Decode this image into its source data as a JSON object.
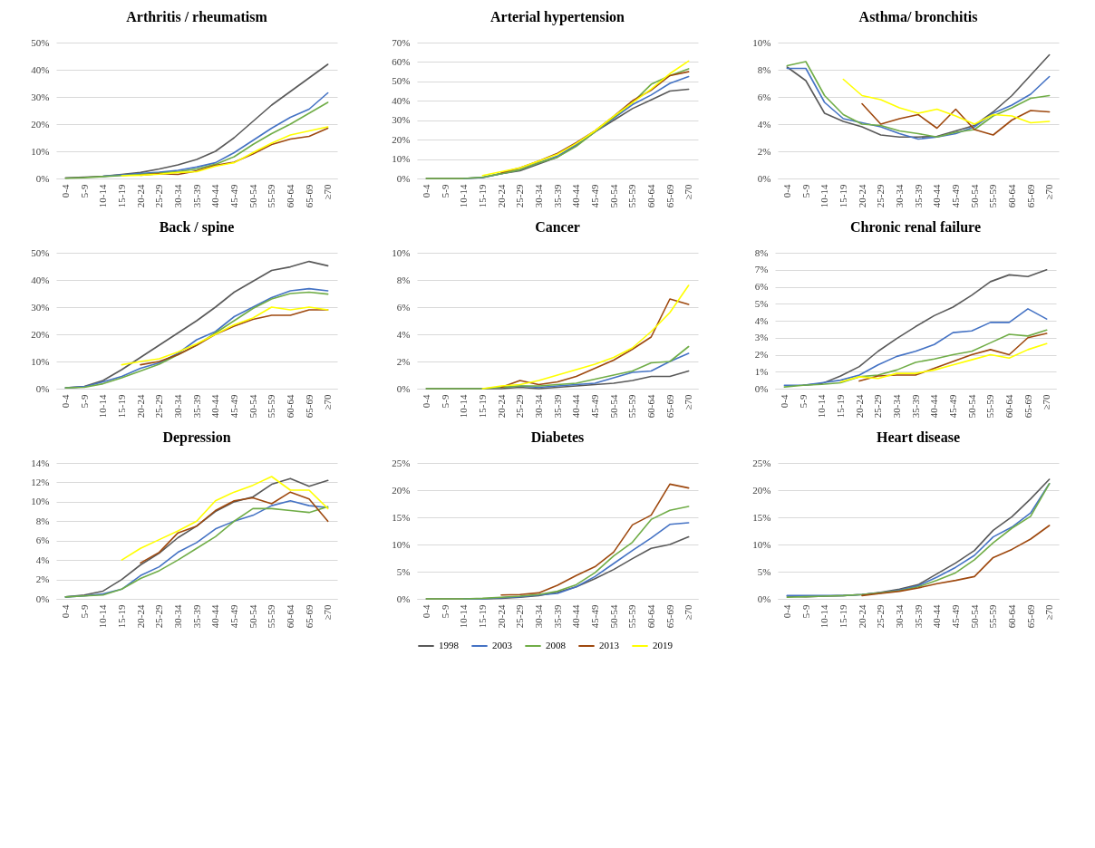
{
  "chart_data": [
    {
      "type": "line",
      "title": "Arthritis / rheumatism",
      "categories": [
        "0-4",
        "5-9",
        "10-14",
        "15-19",
        "20-24",
        "25-29",
        "30-34",
        "35-39",
        "40-44",
        "45-49",
        "50-54",
        "55-59",
        "60-64",
        "65-69",
        "≥70"
      ],
      "ylim": [
        0,
        50
      ],
      "yticks": [
        {
          "value": 0,
          "label": "0%"
        },
        {
          "value": 10,
          "label": "10%"
        },
        {
          "value": 20,
          "label": "20%"
        },
        {
          "value": 30,
          "label": "30%"
        },
        {
          "value": 40,
          "label": "40%"
        },
        {
          "value": 50,
          "label": "50%"
        }
      ],
      "grid": "y",
      "legend": false,
      "line_style": "solid",
      "series": [
        {
          "color": "#595959",
          "values": [
            0.2,
            0.5,
            0.8,
            1.5,
            2.2,
            3.5,
            5,
            7,
            10,
            15,
            21,
            27,
            32,
            37,
            42
          ]
        },
        {
          "color": "#4472c4",
          "values": [
            null,
            null,
            0.8,
            1.3,
            1.8,
            2.3,
            3,
            4.2,
            5.8,
            9.5,
            14,
            18.5,
            22.5,
            25.5,
            31.5
          ]
        },
        {
          "color": "#70ad47",
          "values": [
            0.1,
            0.3,
            0.7,
            1.1,
            1.5,
            2,
            2.5,
            3.5,
            5.2,
            8,
            12.5,
            16.5,
            20,
            24,
            28
          ]
        },
        {
          "color": "#9e480e",
          "values": [
            null,
            null,
            null,
            null,
            1.2,
            1.8,
            1.5,
            2.8,
            4.8,
            6,
            9,
            12.5,
            14.5,
            15.5,
            18.5
          ]
        },
        {
          "color": "#ffff00",
          "values": [
            null,
            null,
            null,
            1,
            1.2,
            1.6,
            2.2,
            2.5,
            4.5,
            5.8,
            9.5,
            13,
            16,
            17.5,
            19
          ]
        }
      ]
    },
    {
      "type": "line",
      "title": "Arterial hypertension",
      "categories": [
        "0-4",
        "5-9",
        "10-14",
        "15-19",
        "20-24",
        "25-29",
        "30-34",
        "35-39",
        "40-44",
        "45-49",
        "50-54",
        "55-59",
        "60-64",
        "65-69",
        "≥70"
      ],
      "ylim": [
        0,
        70
      ],
      "yticks": [
        {
          "value": 0,
          "label": "0%"
        },
        {
          "value": 10,
          "label": "10%"
        },
        {
          "value": 20,
          "label": "20%"
        },
        {
          "value": 30,
          "label": "30%"
        },
        {
          "value": 40,
          "label": "40%"
        },
        {
          "value": 50,
          "label": "50%"
        },
        {
          "value": 60,
          "label": "60%"
        },
        {
          "value": 70,
          "label": "70%"
        }
      ],
      "grid": "y",
      "legend": false,
      "line_style": "solid",
      "series": [
        {
          "color": "#595959",
          "values": [
            0,
            0,
            0,
            0.5,
            2.5,
            4,
            7.5,
            11,
            17,
            24,
            30,
            36,
            40.5,
            45,
            46
          ]
        },
        {
          "color": "#4472c4",
          "values": [
            null,
            null,
            0,
            0.5,
            2.5,
            4.5,
            8,
            11.5,
            17.5,
            24,
            31,
            38,
            43,
            49,
            52.5
          ]
        },
        {
          "color": "#70ad47",
          "values": [
            0,
            0,
            0,
            0.7,
            2.5,
            4.5,
            8,
            11,
            16.5,
            24,
            31.5,
            39,
            48.5,
            53,
            56.5
          ]
        },
        {
          "color": "#9e480e",
          "values": [
            null,
            null,
            null,
            null,
            3,
            5.5,
            9,
            13,
            18.5,
            24.5,
            32,
            40,
            45.5,
            53,
            55
          ]
        },
        {
          "color": "#ffff00",
          "values": [
            null,
            null,
            null,
            1.5,
            3.5,
            5.5,
            9,
            12.5,
            18,
            24.5,
            32,
            39,
            46,
            54,
            60.5
          ]
        }
      ]
    },
    {
      "type": "line",
      "title": "Asthma/ bronchitis",
      "categories": [
        "0-4",
        "5-9",
        "10-14",
        "15-19",
        "20-24",
        "25-29",
        "30-34",
        "35-39",
        "40-44",
        "45-49",
        "50-54",
        "55-59",
        "60-64",
        "65-69",
        "≥70"
      ],
      "ylim": [
        0,
        10
      ],
      "yticks": [
        {
          "value": 0,
          "label": "0%"
        },
        {
          "value": 2,
          "label": "2%"
        },
        {
          "value": 4,
          "label": "4%"
        },
        {
          "value": 6,
          "label": "6%"
        },
        {
          "value": 8,
          "label": "8%"
        },
        {
          "value": 10,
          "label": "10%"
        }
      ],
      "grid": "y",
      "legend": false,
      "line_style": "solid",
      "series": [
        {
          "color": "#595959",
          "values": [
            8.2,
            7.2,
            4.8,
            4.2,
            3.8,
            3.2,
            3.05,
            3.05,
            3.1,
            3.5,
            3.9,
            4.9,
            6.1,
            7.6,
            9.1
          ]
        },
        {
          "color": "#4472c4",
          "values": [
            8.1,
            8.1,
            5.6,
            4.4,
            4.1,
            3.8,
            3.3,
            2.9,
            3.05,
            3.3,
            3.8,
            4.8,
            5.4,
            6.2,
            7.5
          ]
        },
        {
          "color": "#70ad47",
          "values": [
            8.3,
            8.6,
            6.1,
            4.7,
            4,
            3.9,
            3.5,
            3.3,
            3.05,
            3.4,
            3.6,
            4.6,
            5.2,
            5.9,
            6.1
          ]
        },
        {
          "color": "#9e480e",
          "values": [
            null,
            null,
            null,
            null,
            5.5,
            4,
            4.4,
            4.7,
            3.7,
            5.1,
            3.6,
            3.2,
            4.3,
            5,
            4.9
          ]
        },
        {
          "color": "#ffff00",
          "values": [
            null,
            null,
            null,
            7.3,
            6.1,
            5.8,
            5.2,
            4.8,
            5.1,
            4.6,
            4,
            4.7,
            4.6,
            4.1,
            4.2
          ]
        }
      ]
    },
    {
      "type": "line",
      "title": "Back / spine",
      "categories": [
        "0-4",
        "5-9",
        "10-14",
        "15-19",
        "20-24",
        "25-29",
        "30-34",
        "35-39",
        "40-44",
        "45-49",
        "50-54",
        "55-59",
        "60-64",
        "65-69",
        "≥70"
      ],
      "ylim": [
        0,
        50
      ],
      "yticks": [
        {
          "value": 0,
          "label": "0%"
        },
        {
          "value": 10,
          "label": "10%"
        },
        {
          "value": 20,
          "label": "20%"
        },
        {
          "value": 30,
          "label": "30%"
        },
        {
          "value": 40,
          "label": "40%"
        },
        {
          "value": 50,
          "label": "50%"
        }
      ],
      "grid": "y",
      "legend": false,
      "line_style": "solid",
      "series": [
        {
          "color": "#595959",
          "values": [
            0.3,
            0.8,
            3,
            7,
            11.5,
            16,
            20.5,
            25,
            30,
            35.5,
            39.5,
            43.5,
            44.8,
            46.8,
            45.2
          ]
        },
        {
          "color": "#4472c4",
          "values": [
            0.3,
            0.7,
            2.5,
            4.5,
            7.5,
            9.5,
            13,
            18,
            21,
            26.5,
            30,
            33.5,
            36,
            36.8,
            36
          ]
        },
        {
          "color": "#70ad47",
          "values": [
            0.3,
            0.5,
            1.8,
            4,
            6.5,
            9,
            12.5,
            16,
            20.5,
            25,
            29.5,
            33,
            35,
            35.5,
            34.8
          ]
        },
        {
          "color": "#9e480e",
          "values": [
            null,
            null,
            null,
            null,
            8.8,
            10,
            12.5,
            16,
            20,
            23,
            25.5,
            27,
            27,
            29,
            29
          ]
        },
        {
          "color": "#ffff00",
          "values": [
            null,
            null,
            null,
            8.8,
            10,
            11,
            13.5,
            16.5,
            20,
            23.5,
            26,
            30,
            29,
            30,
            29
          ]
        }
      ]
    },
    {
      "type": "line",
      "title": "Cancer",
      "categories": [
        "0-4",
        "5-9",
        "10-14",
        "15-19",
        "20-24",
        "25-29",
        "30-34",
        "35-39",
        "40-44",
        "45-49",
        "50-54",
        "55-59",
        "60-64",
        "65-69",
        "≥70"
      ],
      "ylim": [
        0,
        10
      ],
      "yticks": [
        {
          "value": 0,
          "label": "0%"
        },
        {
          "value": 2,
          "label": "2%"
        },
        {
          "value": 4,
          "label": "4%"
        },
        {
          "value": 6,
          "label": "6%"
        },
        {
          "value": 8,
          "label": "8%"
        },
        {
          "value": 10,
          "label": "10%"
        }
      ],
      "grid": "y",
      "legend": false,
      "line_style": "solid",
      "series": [
        {
          "color": "#595959",
          "values": [
            0,
            0,
            0,
            0,
            0,
            0.1,
            0,
            0.1,
            0.2,
            0.3,
            0.4,
            0.6,
            0.9,
            0.9,
            1.3
          ]
        },
        {
          "color": "#4472c4",
          "values": [
            null,
            null,
            null,
            null,
            0.1,
            0.2,
            0.1,
            0.2,
            0.3,
            0.4,
            0.8,
            1.2,
            1.3,
            2,
            2.6
          ]
        },
        {
          "color": "#70ad47",
          "values": [
            0,
            0,
            0,
            0,
            0.1,
            0.2,
            0.2,
            0.3,
            0.4,
            0.7,
            1,
            1.3,
            1.9,
            2,
            3.1
          ]
        },
        {
          "color": "#9e480e",
          "values": [
            null,
            null,
            null,
            null,
            0.1,
            0.6,
            0.3,
            0.5,
            0.9,
            1.5,
            2.1,
            2.9,
            3.8,
            6.6,
            6.2
          ]
        },
        {
          "color": "#ffff00",
          "values": [
            null,
            null,
            null,
            0,
            0.2,
            0.3,
            0.6,
            1,
            1.4,
            1.8,
            2.3,
            3,
            4.2,
            5.6,
            7.6
          ]
        }
      ]
    },
    {
      "type": "line",
      "title": "Chronic renal failure",
      "categories": [
        "0-4",
        "5-9",
        "10-14",
        "15-19",
        "20-24",
        "25-29",
        "30-34",
        "35-39",
        "40-44",
        "45-49",
        "50-54",
        "55-59",
        "60-64",
        "65-69",
        "≥70"
      ],
      "ylim": [
        0,
        8
      ],
      "yticks": [
        {
          "value": 0,
          "label": "0%"
        },
        {
          "value": 1,
          "label": "1%"
        },
        {
          "value": 2,
          "label": "2%"
        },
        {
          "value": 3,
          "label": "3%"
        },
        {
          "value": 4,
          "label": "4%"
        },
        {
          "value": 5,
          "label": "5%"
        },
        {
          "value": 6,
          "label": "6%"
        },
        {
          "value": 7,
          "label": "7%"
        },
        {
          "value": 8,
          "label": "8%"
        }
      ],
      "grid": "y",
      "legend": false,
      "line_style": "solid",
      "series": [
        {
          "color": "#595959",
          "values": [
            null,
            0.2,
            0.3,
            0.75,
            1.3,
            2.2,
            2.95,
            3.65,
            4.3,
            4.8,
            5.5,
            6.3,
            6.7,
            6.6,
            7
          ]
        },
        {
          "color": "#4472c4",
          "values": [
            0.2,
            0.2,
            0.35,
            0.5,
            0.8,
            1.4,
            1.9,
            2.2,
            2.6,
            3.3,
            3.4,
            3.9,
            3.9,
            4.7,
            4.1
          ]
        },
        {
          "color": "#70ad47",
          "values": [
            0.1,
            0.2,
            0.25,
            0.35,
            0.7,
            0.8,
            1.1,
            1.55,
            1.75,
            2,
            2.2,
            2.7,
            3.2,
            3.1,
            3.45
          ]
        },
        {
          "color": "#9e480e",
          "values": [
            null,
            null,
            null,
            null,
            0.45,
            0.75,
            0.8,
            0.8,
            1.2,
            1.6,
            2,
            2.3,
            2,
            3,
            3.25
          ]
        },
        {
          "color": "#ffff00",
          "values": [
            null,
            null,
            null,
            0.4,
            0.7,
            0.6,
            0.9,
            0.9,
            1.1,
            1.4,
            1.7,
            2,
            1.8,
            2.3,
            2.65
          ]
        }
      ]
    },
    {
      "type": "line",
      "title": "Depression",
      "categories": [
        "0-4",
        "5-9",
        "10-14",
        "15-19",
        "20-24",
        "25-29",
        "30-34",
        "35-39",
        "40-44",
        "45-49",
        "50-54",
        "55-59",
        "60-64",
        "65-69",
        "≥70"
      ],
      "ylim": [
        0,
        14
      ],
      "yticks": [
        {
          "value": 0,
          "label": "0%"
        },
        {
          "value": 2,
          "label": "2%"
        },
        {
          "value": 4,
          "label": "4%"
        },
        {
          "value": 6,
          "label": "6%"
        },
        {
          "value": 8,
          "label": "8%"
        },
        {
          "value": 10,
          "label": "10%"
        },
        {
          "value": 12,
          "label": "12%"
        },
        {
          "value": 14,
          "label": "14%"
        }
      ],
      "grid": "y",
      "legend": false,
      "line_style": "solid",
      "series": [
        {
          "color": "#595959",
          "values": [
            0.2,
            0.4,
            0.8,
            2,
            3.5,
            4.7,
            6.3,
            7.5,
            9,
            10,
            10.5,
            11.8,
            12.4,
            11.6,
            12.2
          ]
        },
        {
          "color": "#4472c4",
          "values": [
            0.2,
            0.3,
            0.5,
            1,
            2.4,
            3.3,
            4.8,
            5.8,
            7.2,
            8,
            8.6,
            9.6,
            10.1,
            9.6,
            9.4
          ]
        },
        {
          "color": "#70ad47",
          "values": [
            0.2,
            0.3,
            0.4,
            1,
            2.1,
            2.9,
            4,
            5.2,
            6.4,
            8,
            9.3,
            9.3,
            9.1,
            8.9,
            9.5
          ]
        },
        {
          "color": "#9e480e",
          "values": [
            null,
            null,
            null,
            null,
            3.7,
            4.8,
            6.8,
            7.5,
            9.1,
            10.1,
            10.4,
            9.8,
            11,
            10.3,
            8
          ]
        },
        {
          "color": "#ffff00",
          "values": [
            null,
            null,
            null,
            4,
            5.2,
            6.1,
            7,
            8,
            10.1,
            11,
            11.7,
            12.6,
            11.2,
            11.2,
            9.3
          ]
        }
      ]
    },
    {
      "type": "line",
      "title": "Diabetes",
      "categories": [
        "0-4",
        "5-9",
        "10-14",
        "15-19",
        "20-24",
        "25-29",
        "30-34",
        "35-39",
        "40-44",
        "45-49",
        "50-54",
        "55-59",
        "60-64",
        "65-69",
        "≥70"
      ],
      "ylim": [
        0,
        25
      ],
      "yticks": [
        {
          "value": 0,
          "label": "0%"
        },
        {
          "value": 5,
          "label": "5%"
        },
        {
          "value": 10,
          "label": "10%"
        },
        {
          "value": 15,
          "label": "15%"
        },
        {
          "value": 20,
          "label": "20%"
        },
        {
          "value": 25,
          "label": "25%"
        }
      ],
      "grid": "y",
      "legend": "bottom",
      "line_style": "solid",
      "series": [
        {
          "name": "1998",
          "color": "#595959",
          "values": [
            0,
            0,
            0,
            0,
            0.1,
            0.3,
            0.6,
            1.2,
            2.2,
            3.7,
            5.4,
            7.4,
            9.3,
            10,
            11.4
          ]
        },
        {
          "name": "2003",
          "color": "#4472c4",
          "values": [
            null,
            null,
            0,
            0,
            0.2,
            0.4,
            0.7,
            1,
            2.2,
            4.1,
            6.5,
            8.9,
            11.2,
            13.7,
            14
          ]
        },
        {
          "name": "2008",
          "color": "#70ad47",
          "values": [
            0,
            0,
            0,
            0.1,
            0.3,
            0.5,
            0.8,
            1.4,
            2.6,
            4.8,
            7.9,
            10.4,
            14.6,
            16.3,
            17
          ]
        },
        {
          "name": "2013",
          "color": "#9e480e",
          "values": [
            null,
            null,
            null,
            null,
            0.7,
            0.8,
            1.1,
            2.5,
            4.3,
            5.9,
            8.6,
            13.6,
            15.4,
            21.1,
            20.4
          ]
        },
        {
          "name": "2019",
          "color": "#ffff00",
          "values": [
            null,
            null,
            null,
            null,
            null,
            null,
            null,
            null,
            null,
            null,
            null,
            null,
            null,
            null,
            null
          ]
        }
      ]
    },
    {
      "type": "line",
      "title": "Heart disease",
      "categories": [
        "0-4",
        "5-9",
        "10-14",
        "15-19",
        "20-24",
        "25-29",
        "30-34",
        "35-39",
        "40-44",
        "45-49",
        "50-54",
        "55-59",
        "60-64",
        "65-69",
        "≥70"
      ],
      "ylim": [
        0,
        25
      ],
      "yticks": [
        {
          "value": 0,
          "label": "0%"
        },
        {
          "value": 5,
          "label": "5%"
        },
        {
          "value": 10,
          "label": "10%"
        },
        {
          "value": 15,
          "label": "15%"
        },
        {
          "value": 20,
          "label": "20%"
        },
        {
          "value": 25,
          "label": "25%"
        }
      ],
      "grid": "y",
      "legend": false,
      "line_style": "solid",
      "series": [
        {
          "color": "#595959",
          "values": [
            0.5,
            0.4,
            0.5,
            0.6,
            0.8,
            1.2,
            1.8,
            2.6,
            4.6,
            6.6,
            8.9,
            12.6,
            15.1,
            18.4,
            22
          ]
        },
        {
          "color": "#4472c4",
          "values": [
            0.6,
            0.6,
            0.6,
            0.6,
            0.8,
            1.1,
            1.6,
            2.4,
            4,
            5.8,
            8,
            11.4,
            13.2,
            15.8,
            21.2
          ]
        },
        {
          "color": "#70ad47",
          "values": [
            0.3,
            0.4,
            0.5,
            0.6,
            0.8,
            1.1,
            1.5,
            2.2,
            3.4,
            4.8,
            7.2,
            10.3,
            13,
            15.2,
            21.2
          ]
        },
        {
          "color": "#9e480e",
          "values": [
            null,
            null,
            null,
            null,
            0.6,
            1,
            1.4,
            2,
            2.8,
            3.4,
            4.1,
            7.6,
            9.1,
            11,
            13.5
          ]
        }
      ]
    }
  ]
}
